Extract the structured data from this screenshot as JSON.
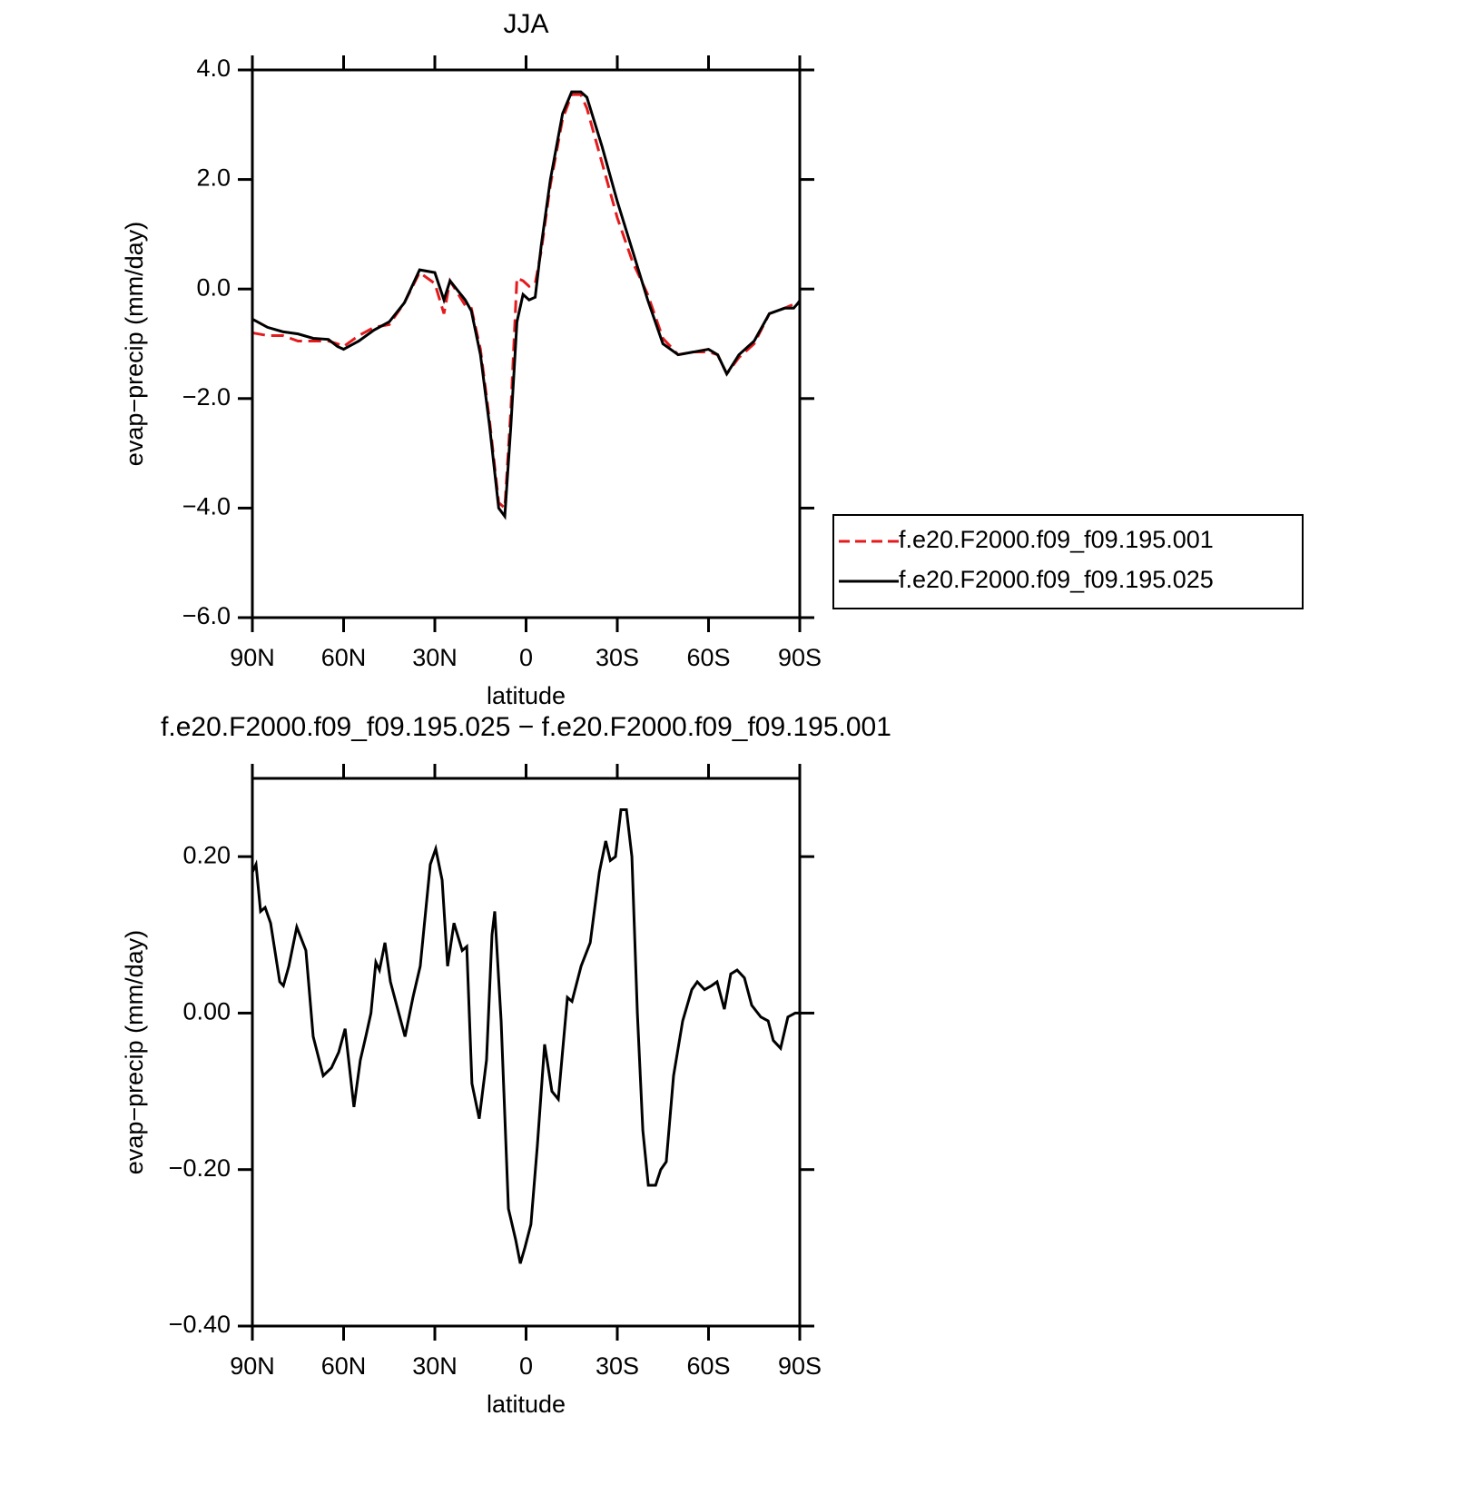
{
  "chart_data": [
    {
      "type": "line",
      "title": "JJA",
      "x_label": "latitude",
      "y_label": "evap−precip (mm/day)",
      "x": [
        90,
        85,
        80,
        75,
        70,
        65,
        62,
        60,
        55,
        50,
        45,
        40,
        35,
        30,
        27,
        25,
        20,
        18,
        15,
        12,
        9,
        7,
        5,
        3,
        1,
        -1,
        -3,
        -5,
        -8,
        -12,
        -15,
        -18,
        -20,
        -25,
        -30,
        -35,
        -40,
        -45,
        -50,
        -55,
        -60,
        -63,
        -66,
        -70,
        -75,
        -80,
        -85,
        -88,
        -90
      ],
      "series": [
        {
          "name": "f.e20.F2000.f09_f09.195.001",
          "color": "#e41a1c",
          "line_style": "dashed",
          "values": [
            -0.8,
            -0.85,
            -0.85,
            -0.95,
            -0.95,
            -0.95,
            -1.0,
            -1.05,
            -0.85,
            -0.7,
            -0.65,
            -0.25,
            0.3,
            0.1,
            -0.45,
            0.15,
            -0.3,
            -0.35,
            -1.1,
            -2.4,
            -3.9,
            -4.0,
            -2.2,
            0.2,
            0.15,
            0.05,
            0.1,
            0.7,
            1.9,
            3.1,
            3.55,
            3.55,
            3.3,
            2.3,
            1.3,
            0.5,
            -0.1,
            -0.9,
            -1.2,
            -1.15,
            -1.15,
            -1.2,
            -1.55,
            -1.25,
            -1.0,
            -0.45,
            -0.35,
            -0.28,
            -0.22
          ]
        },
        {
          "name": "f.e20.F2000.f09_f09.195.025",
          "color": "#000000",
          "line_style": "solid",
          "values": [
            -0.55,
            -0.7,
            -0.78,
            -0.82,
            -0.9,
            -0.92,
            -1.05,
            -1.1,
            -0.95,
            -0.75,
            -0.6,
            -0.25,
            0.35,
            0.3,
            -0.2,
            0.15,
            -0.2,
            -0.4,
            -1.2,
            -2.5,
            -4.0,
            -4.15,
            -2.5,
            -0.6,
            -0.1,
            -0.2,
            -0.15,
            0.8,
            2.0,
            3.2,
            3.6,
            3.6,
            3.5,
            2.6,
            1.6,
            0.7,
            -0.2,
            -1.0,
            -1.2,
            -1.15,
            -1.1,
            -1.2,
            -1.55,
            -1.2,
            -0.95,
            -0.45,
            -0.35,
            -0.35,
            -0.22
          ]
        }
      ],
      "xlim": [
        90,
        -90
      ],
      "xticks": [
        {
          "value": 90,
          "label": "90N"
        },
        {
          "value": 60,
          "label": "60N"
        },
        {
          "value": 30,
          "label": "30N"
        },
        0,
        {
          "value": -30,
          "label": "30S"
        },
        {
          "value": -60,
          "label": "60S"
        },
        {
          "value": -90,
          "label": "90S"
        }
      ],
      "ylim": [
        -6,
        4
      ],
      "yticks": [
        {
          "value": -6,
          "label": "−6.0"
        },
        {
          "value": -4,
          "label": "−4.0"
        },
        {
          "value": -2,
          "label": "−2.0"
        },
        {
          "value": 0,
          "label": "0.0"
        },
        {
          "value": 2,
          "label": "2.0"
        },
        {
          "value": 4,
          "label": "4.0"
        }
      ],
      "legend": "right"
    },
    {
      "type": "line",
      "title": "f.e20.F2000.f09_f09.195.025 − f.e20.F2000.f09_f09.195.001",
      "x_label": "latitude",
      "y_label": "evap−precip (mm/day)",
      "x": [
        90,
        88.8,
        87.3,
        85.8,
        84,
        81,
        79.8,
        78,
        75.4,
        72.4,
        70,
        66.7,
        64,
        61.6,
        59.5,
        56.6,
        54.5,
        52.7,
        51,
        49.4,
        48.2,
        46.4,
        44.6,
        42.2,
        39.8,
        37.2,
        34.8,
        31.5,
        29.7,
        27.6,
        25.8,
        23.7,
        21,
        19.5,
        17.8,
        15.4,
        13,
        11.2,
        10.3,
        8.2,
        5.8,
        3.4,
        1.9,
        0.4,
        -1.6,
        -3.7,
        -6.1,
        -8.5,
        -10.6,
        -13.6,
        -15.1,
        -18.1,
        -21.1,
        -24.1,
        -26.2,
        -27.7,
        -29.4,
        -31.2,
        -33,
        -34.8,
        -36.6,
        -38.4,
        -40.2,
        -42.6,
        -44.3,
        -46.1,
        -48.5,
        -51.5,
        -54.5,
        -56.3,
        -58.7,
        -61,
        -62.8,
        -65.2,
        -67.3,
        -69.4,
        -71.8,
        -74.2,
        -77.2,
        -79.6,
        -81.3,
        -83.7,
        -86.1,
        -88.5,
        -90
      ],
      "series": [
        {
          "color": "#000000",
          "line_style": "solid",
          "values": [
            0.18,
            0.19,
            0.13,
            0.135,
            0.115,
            0.04,
            0.035,
            0.06,
            0.11,
            0.08,
            -0.03,
            -0.08,
            -0.07,
            -0.05,
            -0.02,
            -0.12,
            -0.06,
            -0.03,
            0.0,
            0.065,
            0.055,
            0.09,
            0.04,
            0.005,
            -0.03,
            0.02,
            0.06,
            0.19,
            0.21,
            0.17,
            0.06,
            0.115,
            0.08,
            0.085,
            -0.09,
            -0.135,
            -0.06,
            0.1,
            0.13,
            -0.01,
            -0.25,
            -0.29,
            -0.32,
            -0.3,
            -0.27,
            -0.17,
            -0.04,
            -0.1,
            -0.11,
            0.02,
            0.015,
            0.06,
            0.09,
            0.18,
            0.22,
            0.195,
            0.2,
            0.26,
            0.26,
            0.2,
            0.0,
            -0.15,
            -0.22,
            -0.22,
            -0.2,
            -0.19,
            -0.08,
            -0.01,
            0.03,
            0.04,
            0.03,
            0.035,
            0.04,
            0.005,
            0.05,
            0.055,
            0.045,
            0.01,
            -0.005,
            -0.01,
            -0.035,
            -0.045,
            -0.005,
            0.0,
            0.0
          ]
        }
      ],
      "xlim": [
        90,
        -90
      ],
      "xticks": [
        {
          "value": 90,
          "label": "90N"
        },
        {
          "value": 60,
          "label": "60N"
        },
        {
          "value": 30,
          "label": "30N"
        },
        0,
        {
          "value": -30,
          "label": "30S"
        },
        {
          "value": -60,
          "label": "60S"
        },
        {
          "value": -90,
          "label": "90S"
        }
      ],
      "ylim": [
        -0.4,
        0.3
      ],
      "yticks": [
        {
          "value": -0.4,
          "label": "−0.40"
        },
        {
          "value": -0.2,
          "label": "−0.20"
        },
        {
          "value": 0,
          "label": "0.00"
        },
        {
          "value": 0.2,
          "label": "0.20"
        }
      ]
    }
  ]
}
